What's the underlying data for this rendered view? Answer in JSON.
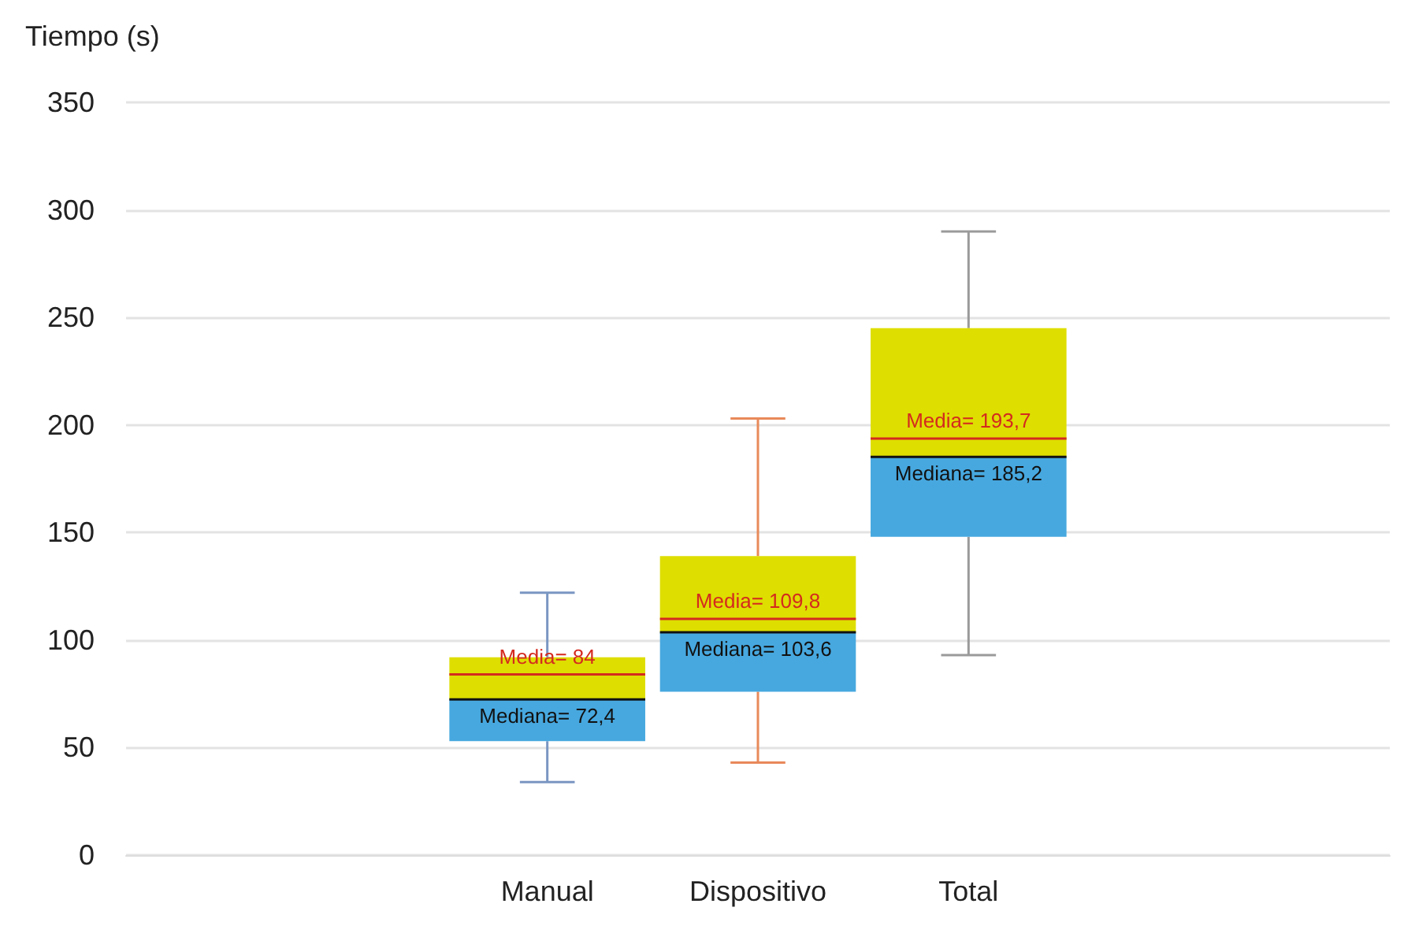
{
  "chart_data": {
    "type": "box",
    "ylabel": "Tiempo (s)",
    "categories": [
      null,
      null,
      "Manual",
      "Dispositivo",
      "Total",
      null,
      null
    ],
    "boxes": [
      null,
      null,
      {
        "low": 34,
        "q1": 53,
        "median": 72.4,
        "q3": 92,
        "high": 122,
        "mean": 84
      },
      {
        "low": 43,
        "q1": 76,
        "median": 103.6,
        "q3": 139,
        "high": 203,
        "mean": 109.8
      },
      {
        "low": 93,
        "q1": 148,
        "median": 185.2,
        "q3": 245,
        "high": 290,
        "mean": 193.7
      },
      null,
      null
    ],
    "ylim": [
      0,
      350
    ],
    "yticks": [
      0,
      50,
      100,
      150,
      200,
      250,
      300,
      350
    ],
    "grid": "y",
    "annotations": [
      {
        "text": "Mediana= 72,4",
        "x": "Manual",
        "y": 72.4
      },
      {
        "text": "Media= 84",
        "x": "Manual",
        "y": 84
      },
      {
        "text": "Media= 109,8",
        "x": "Dispositivo",
        "y": 109.8
      },
      {
        "text": "Mediana= 103,6",
        "x": "Dispositivo",
        "y": 103.6
      },
      {
        "text": "Media= 193,7",
        "x": "Total",
        "y": 193.7
      },
      {
        "text": "Mediana= 185,2",
        "x": "Total",
        "y": 185.2
      }
    ]
  }
}
